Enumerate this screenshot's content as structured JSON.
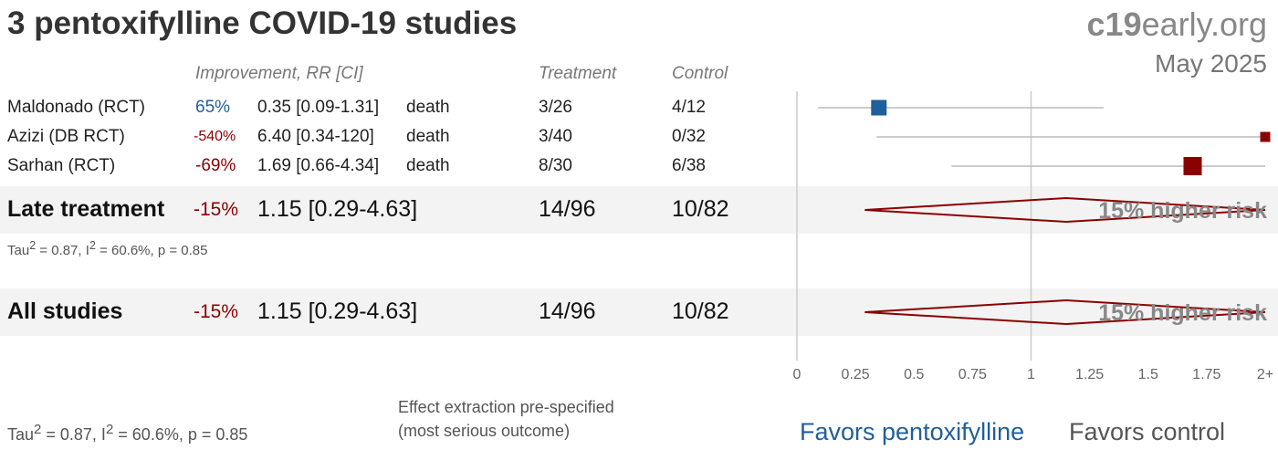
{
  "title": "3 pentoxifylline COVID-19 studies",
  "brand": {
    "c19": "c19",
    "rest": "early.org",
    "date": "May 2025"
  },
  "headers": {
    "improvement": "Improvement, RR [CI]",
    "treatment": "Treatment",
    "control": "Control"
  },
  "studies": [
    {
      "name": "Maldonado (RCT)",
      "improvement": "65%",
      "rr_text": "0.35 [0.09-1.31]",
      "outcome": "death",
      "treatment": "3/26",
      "control": "4/12"
    },
    {
      "name": "Azizi (DB RCT)",
      "improvement": "-540%",
      "rr_text": "6.40 [0.34-120]",
      "outcome": "death",
      "treatment": "3/40",
      "control": "0/32"
    },
    {
      "name": "Sarhan (RCT)",
      "improvement": "-69%",
      "rr_text": "1.69 [0.66-4.34]",
      "outcome": "death",
      "treatment": "8/30",
      "control": "6/38"
    }
  ],
  "late": {
    "label": "Late treatment",
    "improvement": "-15%",
    "rr_text": "1.15 [0.29-4.63]",
    "treatment": "14/96",
    "control": "10/82",
    "tau_prefix": "Tau",
    "tau_rest": " = 0.87, I",
    "i_rest": " = 60.6%, p = 0.85",
    "risk": "15% higher risk"
  },
  "all": {
    "label": "All studies",
    "improvement": "-15%",
    "rr_text": "1.15 [0.29-4.63]",
    "treatment": "14/96",
    "control": "10/82",
    "risk": "15% higher risk"
  },
  "bottom_tau": {
    "tau_prefix": "Tau",
    "tau_rest": " = 0.87, I",
    "i_rest": " = 60.6%, p = 0.85"
  },
  "note": {
    "line1": "Effect extraction pre-specified",
    "line2": "(most serious outcome)"
  },
  "favors": {
    "left": "Favors pentoxifylline",
    "right": "Favors control"
  },
  "colors": {
    "benefit": "#1f5f9c",
    "harm": "#8b0000",
    "ci_line": "#bbbbbb",
    "band": "#f3f3f3"
  },
  "chart_data": {
    "type": "forest",
    "xlim": [
      0,
      2
    ],
    "ticks": [
      0,
      0.25,
      0.5,
      0.75,
      1,
      1.25,
      1.5,
      1.75,
      2
    ],
    "tick_labels": [
      "0",
      "0.25",
      "0.5",
      "0.75",
      "1",
      "1.25",
      "1.5",
      "1.75",
      "2+"
    ],
    "reference_line": 1,
    "studies": [
      {
        "name": "Maldonado (RCT)",
        "rr": 0.35,
        "ci": [
          0.09,
          1.31
        ],
        "color": "benefit",
        "weight": 3
      },
      {
        "name": "Azizi (DB RCT)",
        "rr": 6.4,
        "ci": [
          0.34,
          120
        ],
        "color": "harm",
        "weight": 1
      },
      {
        "name": "Sarhan (RCT)",
        "rr": 1.69,
        "ci": [
          0.66,
          4.34
        ],
        "color": "harm",
        "weight": 4
      }
    ],
    "summaries": [
      {
        "name": "Late treatment",
        "rr": 1.15,
        "ci": [
          0.29,
          4.63
        ]
      },
      {
        "name": "All studies",
        "rr": 1.15,
        "ci": [
          0.29,
          4.63
        ]
      }
    ]
  }
}
